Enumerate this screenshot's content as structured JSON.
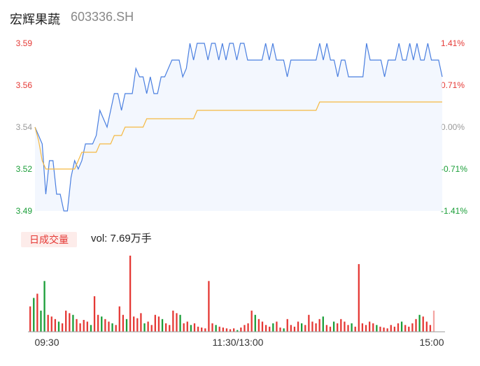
{
  "header": {
    "name": "宏辉果蔬",
    "code": "603336.SH"
  },
  "volume": {
    "label": "日成交量",
    "text": "vol: 7.69万手"
  },
  "colors": {
    "up": "#e53935",
    "down": "#1a9e38",
    "neutral": "#999999",
    "price": "#4a7fe0",
    "avg": "#f5b942"
  },
  "chart_data": [
    {
      "type": "line",
      "y_ticks": [
        {
          "price": "3.59",
          "pct": "1.41%",
          "dir": "up"
        },
        {
          "price": "3.56",
          "pct": "0.71%",
          "dir": "up"
        },
        {
          "price": "3.54",
          "pct": "0.00%",
          "dir": "flat"
        },
        {
          "price": "3.52",
          "pct": "-0.71%",
          "dir": "down"
        },
        {
          "price": "3.49",
          "pct": "-1.41%",
          "dir": "down"
        }
      ],
      "ylim": [
        3.49,
        3.59
      ],
      "x_ticks": [
        "09:30",
        "11:30/13:00",
        "15:00"
      ],
      "series": [
        {
          "key": "price",
          "values": [
            3.54,
            3.535,
            3.53,
            3.5,
            3.52,
            3.52,
            3.5,
            3.5,
            3.49,
            3.49,
            3.51,
            3.52,
            3.515,
            3.52,
            3.53,
            3.53,
            3.53,
            3.535,
            3.55,
            3.545,
            3.54,
            3.55,
            3.56,
            3.56,
            3.55,
            3.56,
            3.56,
            3.56,
            3.575,
            3.57,
            3.57,
            3.56,
            3.57,
            3.56,
            3.56,
            3.57,
            3.57,
            3.575,
            3.58,
            3.58,
            3.58,
            3.57,
            3.575,
            3.59,
            3.58,
            3.59,
            3.59,
            3.59,
            3.58,
            3.59,
            3.59,
            3.58,
            3.59,
            3.58,
            3.59,
            3.59,
            3.58,
            3.59,
            3.59,
            3.58,
            3.58,
            3.58,
            3.58,
            3.58,
            3.59,
            3.58,
            3.59,
            3.58,
            3.58,
            3.58,
            3.57,
            3.58,
            3.58,
            3.58,
            3.58,
            3.58,
            3.58,
            3.58,
            3.58,
            3.59,
            3.58,
            3.59,
            3.58,
            3.58,
            3.57,
            3.58,
            3.58,
            3.57,
            3.57,
            3.57,
            3.57,
            3.57,
            3.59,
            3.58,
            3.58,
            3.58,
            3.58,
            3.57,
            3.58,
            3.58,
            3.58,
            3.59,
            3.58,
            3.58,
            3.59,
            3.58,
            3.59,
            3.58,
            3.58,
            3.59,
            3.58,
            3.58,
            3.58,
            3.57
          ]
        },
        {
          "key": "avg",
          "values": [
            3.54,
            3.532,
            3.52,
            3.515,
            3.515,
            3.515,
            3.515,
            3.515,
            3.515,
            3.515,
            3.515,
            3.515,
            3.52,
            3.525,
            3.525,
            3.525,
            3.525,
            3.525,
            3.53,
            3.53,
            3.53,
            3.53,
            3.535,
            3.535,
            3.535,
            3.54,
            3.54,
            3.54,
            3.54,
            3.54,
            3.54,
            3.545,
            3.545,
            3.545,
            3.545,
            3.545,
            3.545,
            3.545,
            3.545,
            3.545,
            3.545,
            3.545,
            3.545,
            3.545,
            3.545,
            3.55,
            3.55,
            3.55,
            3.55,
            3.55,
            3.55,
            3.55,
            3.55,
            3.55,
            3.55,
            3.55,
            3.55,
            3.55,
            3.55,
            3.55,
            3.55,
            3.55,
            3.55,
            3.55,
            3.55,
            3.55,
            3.55,
            3.55,
            3.55,
            3.55,
            3.55,
            3.55,
            3.55,
            3.55,
            3.55,
            3.55,
            3.55,
            3.55,
            3.55,
            3.555,
            3.555,
            3.555,
            3.555,
            3.555,
            3.555,
            3.555,
            3.555,
            3.555,
            3.555,
            3.555,
            3.555,
            3.555,
            3.555,
            3.555,
            3.555,
            3.555,
            3.555,
            3.555,
            3.555,
            3.555,
            3.555,
            3.555,
            3.555,
            3.555,
            3.555,
            3.555,
            3.555,
            3.555,
            3.555,
            3.555,
            3.555,
            3.555,
            3.555,
            3.555
          ]
        }
      ]
    },
    {
      "type": "bar",
      "values": [
        30,
        40,
        45,
        25,
        60,
        20,
        18,
        15,
        12,
        10,
        25,
        22,
        20,
        15,
        10,
        14,
        12,
        8,
        42,
        20,
        18,
        15,
        12,
        10,
        8,
        30,
        20,
        15,
        90,
        18,
        16,
        22,
        10,
        12,
        8,
        20,
        18,
        15,
        10,
        8,
        25,
        22,
        20,
        10,
        12,
        8,
        10,
        6,
        5,
        4,
        60,
        10,
        8,
        6,
        5,
        4,
        3,
        4,
        2,
        5,
        8,
        10,
        25,
        20,
        15,
        12,
        8,
        6,
        10,
        12,
        5,
        4,
        15,
        8,
        6,
        12,
        10,
        8,
        20,
        12,
        10,
        15,
        18,
        8,
        6,
        12,
        10,
        15,
        12,
        8,
        10,
        6,
        80,
        10,
        8,
        12,
        10,
        8,
        6,
        5,
        4,
        8,
        6,
        10,
        12,
        8,
        6,
        10,
        15,
        20,
        18,
        12,
        8,
        25
      ],
      "dirs": [
        "u",
        "d",
        "u",
        "d",
        "d",
        "u",
        "u",
        "u",
        "d",
        "u",
        "u",
        "u",
        "d",
        "u",
        "u",
        "u",
        "u",
        "d",
        "u",
        "u",
        "d",
        "u",
        "u",
        "d",
        "u",
        "u",
        "u",
        "d",
        "u",
        "u",
        "u",
        "u",
        "d",
        "u",
        "u",
        "u",
        "u",
        "d",
        "u",
        "u",
        "u",
        "u",
        "d",
        "u",
        "u",
        "d",
        "u",
        "u",
        "u",
        "u",
        "u",
        "u",
        "d",
        "u",
        "u",
        "u",
        "u",
        "u",
        "d",
        "u",
        "u",
        "u",
        "u",
        "d",
        "u",
        "u",
        "u",
        "u",
        "d",
        "u",
        "u",
        "d",
        "u",
        "u",
        "u",
        "u",
        "d",
        "u",
        "u",
        "u",
        "u",
        "u",
        "d",
        "u",
        "u",
        "d",
        "u",
        "u",
        "u",
        "u",
        "d",
        "u",
        "u",
        "u",
        "u",
        "u",
        "u",
        "d",
        "u",
        "u",
        "u",
        "u",
        "u",
        "u",
        "d",
        "u",
        "u",
        "u",
        "u",
        "d",
        "u",
        "u",
        "u",
        "n"
      ]
    }
  ]
}
